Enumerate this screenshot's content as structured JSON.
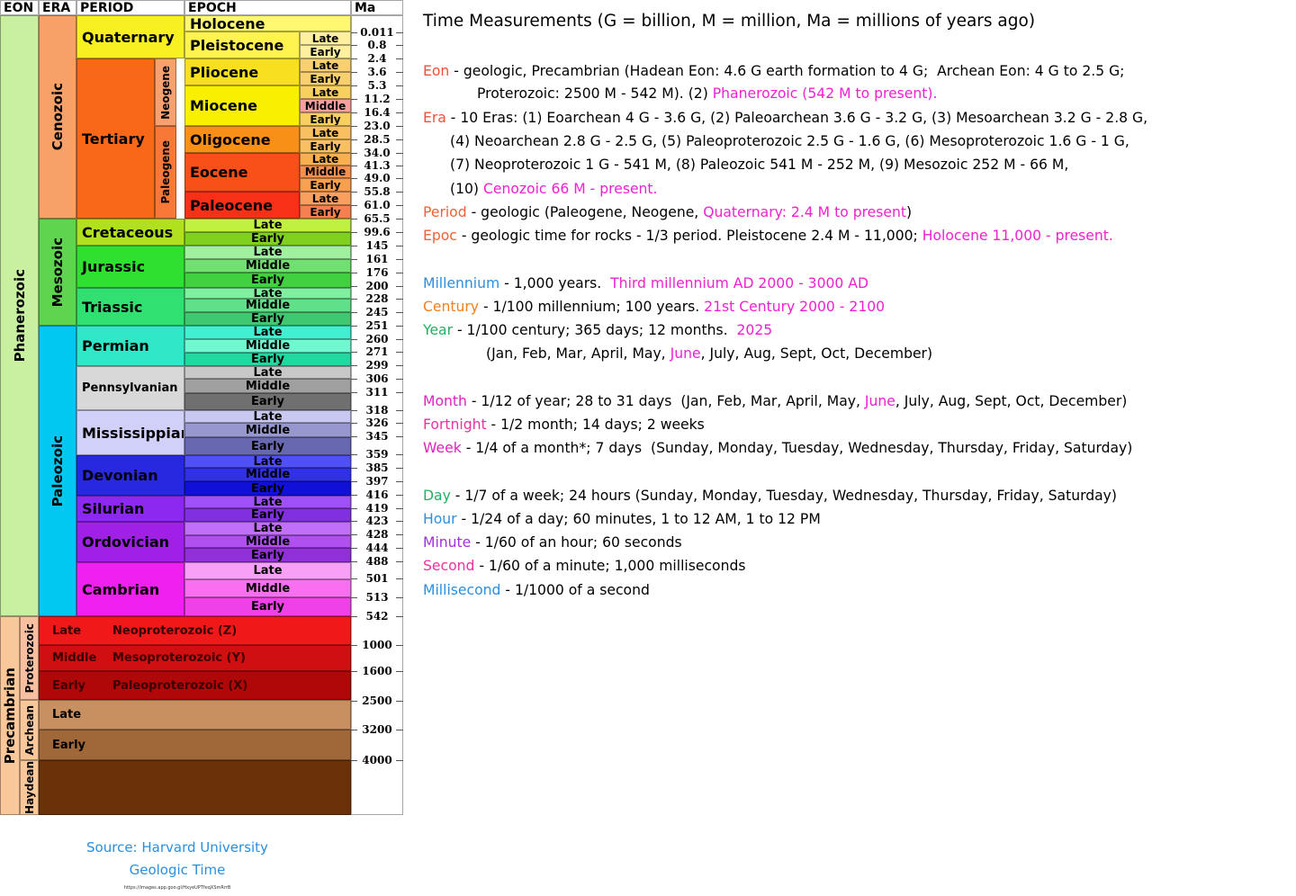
{
  "timescale": {
    "headers": [
      "EON",
      "ERA",
      "PERIOD",
      "EPOCH",
      "Ma"
    ],
    "eons": [
      {
        "label": "Phanerozoic",
        "color": "#c8f0a0"
      },
      {
        "label": "Precambrian",
        "color": "#f8c89a"
      }
    ],
    "eras": [
      {
        "label": "Cenozoic",
        "color": "#f7a068"
      },
      {
        "label": "Mesozoic",
        "color": "#5fd44f"
      },
      {
        "label": "Paleozoic",
        "color": "#00c8f0"
      },
      {
        "label": "Proterozoic",
        "color": "#f8c0a0"
      },
      {
        "label": "Archean",
        "color": "#f8c89a"
      },
      {
        "label": "Haydean",
        "color": "#f8c89a"
      }
    ],
    "subperiods": [
      {
        "label": "Neogene",
        "color": "#f8a070"
      },
      {
        "label": "Paleogene",
        "color": "#f87838"
      }
    ],
    "periods": [
      {
        "label": "Quaternary",
        "color": "#f8f020"
      },
      {
        "label": "Tertiary",
        "color": "#f86818"
      },
      {
        "label": "Cretaceous",
        "color": "#b0e020",
        "stages": [
          {
            "label": "Late",
            "color": "#c0f040"
          },
          {
            "label": "Early",
            "color": "#80d020"
          }
        ]
      },
      {
        "label": "Jurassic",
        "color": "#30e030",
        "stages": [
          {
            "label": "Late",
            "color": "#a0f0a0"
          },
          {
            "label": "Middle",
            "color": "#70e070"
          },
          {
            "label": "Early",
            "color": "#40d040"
          }
        ]
      },
      {
        "label": "Triassic",
        "color": "#30e070",
        "stages": [
          {
            "label": "Late",
            "color": "#80f0a0"
          },
          {
            "label": "Middle",
            "color": "#60e088"
          },
          {
            "label": "Early",
            "color": "#40c870"
          }
        ]
      },
      {
        "label": "Permian",
        "color": "#30e8c8",
        "stages": [
          {
            "label": "Late",
            "color": "#40f0d0"
          },
          {
            "label": "Middle",
            "color": "#70f8d0"
          },
          {
            "label": "Early",
            "color": "#20d8a0"
          }
        ]
      },
      {
        "label": "Pennsylvanian",
        "color": "#d8d8d8",
        "stages": [
          {
            "label": "Late",
            "color": "#c8c8c8"
          },
          {
            "label": "Middle",
            "color": "#a0a0a0"
          },
          {
            "label": "Early",
            "color": "#707070"
          }
        ]
      },
      {
        "label": "Mississippian",
        "color": "#d0d0f8",
        "stages": [
          {
            "label": "Late",
            "color": "#c8c8f0"
          },
          {
            "label": "Middle",
            "color": "#9898d0"
          },
          {
            "label": "Early",
            "color": "#6868b0"
          }
        ]
      },
      {
        "label": "Devonian",
        "color": "#2828e0",
        "stages": [
          {
            "label": "Late",
            "color": "#5050f8"
          },
          {
            "label": "Middle",
            "color": "#3030e8"
          },
          {
            "label": "Early",
            "color": "#1010d8"
          }
        ]
      },
      {
        "label": "Silurian",
        "color": "#8c28f0",
        "stages": [
          {
            "label": "Late",
            "color": "#a050f8"
          },
          {
            "label": "Early",
            "color": "#8030e0"
          }
        ]
      },
      {
        "label": "Ordovician",
        "color": "#a020e8",
        "stages": [
          {
            "label": "Late",
            "color": "#c070f8"
          },
          {
            "label": "Middle",
            "color": "#b050f0"
          },
          {
            "label": "Early",
            "color": "#9030d8"
          }
        ]
      },
      {
        "label": "Cambrian",
        "color": "#f020f0",
        "stages": [
          {
            "label": "Late",
            "color": "#f8a0f8"
          },
          {
            "label": "Middle",
            "color": "#f870f0"
          },
          {
            "label": "Early",
            "color": "#f040e8"
          }
        ]
      }
    ],
    "epochs": [
      {
        "label": "Holocene",
        "color": "#fff870"
      },
      {
        "label": "Pleistocene",
        "color": "#fff44f",
        "stages": [
          {
            "label": "Late",
            "color": "#fff0a0"
          },
          {
            "label": "Early",
            "color": "#fff0a0"
          }
        ]
      },
      {
        "label": "Pliocene",
        "color": "#f8e020",
        "stages": [
          {
            "label": "Late",
            "color": "#f8d070"
          },
          {
            "label": "Early",
            "color": "#f8d070"
          }
        ]
      },
      {
        "label": "Miocene",
        "color": "#f8f000",
        "stages": [
          {
            "label": "Late",
            "color": "#f8d060"
          },
          {
            "label": "Middle",
            "color": "#f8a0a0"
          },
          {
            "label": "Early",
            "color": "#f8d060"
          }
        ]
      },
      {
        "label": "Oligocene",
        "color": "#f89018",
        "stages": [
          {
            "label": "Late",
            "color": "#f8c060"
          },
          {
            "label": "Early",
            "color": "#f8c060"
          }
        ]
      },
      {
        "label": "Eocene",
        "color": "#f85018",
        "stages": [
          {
            "label": "Late",
            "color": "#f8b050"
          },
          {
            "label": "Middle",
            "color": "#f89050"
          },
          {
            "label": "Early",
            "color": "#f8a050"
          }
        ]
      },
      {
        "label": "Paleocene",
        "color": "#f83018",
        "stages": [
          {
            "label": "Late",
            "color": "#f8a060"
          },
          {
            "label": "Early",
            "color": "#f88050"
          }
        ]
      }
    ],
    "precambrian_rows": [
      {
        "stage": "Late",
        "name": "Neoproterozoic (Z)",
        "color": "#f01818"
      },
      {
        "stage": "Middle",
        "name": "Mesoproterozoic (Y)",
        "color": "#d01010"
      },
      {
        "stage": "Early",
        "name": "Paleoproterozoic (X)",
        "color": "#b00808"
      },
      {
        "stage": "Late",
        "color": "#c89060"
      },
      {
        "stage": "Early",
        "color": "#a06838"
      },
      {
        "color": "#6a3208"
      }
    ],
    "ma": [
      "0.011",
      "0.8",
      "2.4",
      "3.6",
      "5.3",
      "11.2",
      "16.4",
      "23.0",
      "28.5",
      "34.0",
      "41.3",
      "49.0",
      "55.8",
      "61.0",
      "65.5",
      "99.6",
      "145",
      "161",
      "176",
      "200",
      "228",
      "245",
      "251",
      "260",
      "271",
      "299",
      "306",
      "311",
      "318",
      "326",
      "345",
      "359",
      "385",
      "397",
      "416",
      "419",
      "423",
      "428",
      "444",
      "488",
      "501",
      "513",
      "542",
      "1000",
      "1600",
      "2500",
      "3200",
      "4000"
    ]
  },
  "source": {
    "line1": "Source: Harvard University",
    "line2": "Geologic Time",
    "url": "https://images.app.goo.gl/HxyeUPTfeqXSmRrrB"
  },
  "measurements": {
    "title": "Time Measurements (G = billion, M = million, Ma = millions of years ago)",
    "lines": [
      [
        {
          "text": "Eon",
          "color": "#f05030"
        },
        {
          "text": " - geologic, Precambrian (Hadean Eon: 4.6 G earth formation to 4 G;  Archean Eon: 4 G to 2.5 G;"
        }
      ],
      [
        {
          "text": "Proterozoic: 2500 M - 542 M). (2) "
        },
        {
          "text": "Phanerozoic (542 M to present).",
          "color": "#f020d0"
        }
      ],
      [
        {
          "text": "Era",
          "color": "#f05030"
        },
        {
          "text": " - 10 Eras: (1) Eoarchean 4 G - 3.6 G, (2) Paleoarchean 3.6 G - 3.2 G, (3) Mesoarchean 3.2 G - 2.8 G,"
        }
      ],
      [
        {
          "text": "(4) Neoarchean 2.8 G - 2.5 G, (5) Paleoproterozoic 2.5 G - 1.6 G, (6) Mesoproterozoic 1.6 G - 1 G,"
        }
      ],
      [
        {
          "text": "(7) Neoproterozoic 1 G - 541 M, (8) Paleozoic 541 M - 252 M, (9) Mesozoic 252 M - 66 M,"
        }
      ],
      [
        {
          "text": "(10) "
        },
        {
          "text": "Cenozoic 66 M - present.",
          "color": "#f020d0"
        }
      ],
      [
        {
          "text": "Period",
          "color": "#f06030"
        },
        {
          "text": " - geologic (Paleogene, Neogene, "
        },
        {
          "text": "Quaternary: 2.4 M to present",
          "color": "#f020d0"
        },
        {
          "text": ")"
        }
      ],
      [
        {
          "text": "Epoc",
          "color": "#f06030"
        },
        {
          "text": " - geologic time for rocks - 1/3 period. Pleistocene 2.4 M - 11,000; "
        },
        {
          "text": "Holocene 11,000 - present.",
          "color": "#f020d0"
        }
      ],
      [
        {
          "text": "Millennium",
          "color": "#2a8fe0"
        },
        {
          "text": " - 1,000 years.  "
        },
        {
          "text": "Third millennium AD 2000 - 3000 AD",
          "color": "#f020d0"
        }
      ],
      [
        {
          "text": "Century",
          "color": "#f08020"
        },
        {
          "text": " - 1/100 millennium; 100 years. "
        },
        {
          "text": "21st Century 2000 - 2100",
          "color": "#f020d0"
        }
      ],
      [
        {
          "text": "Year",
          "color": "#20b060"
        },
        {
          "text": " - 1/100 century; 365 days; 12 months.  "
        },
        {
          "text": "2025",
          "color": "#f020d0"
        }
      ],
      [
        {
          "text": "(Jan, Feb, Mar, April, May, "
        },
        {
          "text": "June",
          "color": "#f020d0"
        },
        {
          "text": ", July, Aug, Sept, Oct, December)"
        }
      ],
      [
        {
          "text": "Month",
          "color": "#e020c0"
        },
        {
          "text": " - 1/12 of year; 28 to 31 days  (Jan, Feb, Mar, April, May, "
        },
        {
          "text": "June",
          "color": "#f020d0"
        },
        {
          "text": ", July, Aug, Sept, Oct, December)"
        }
      ],
      [
        {
          "text": "Fortnight",
          "color": "#f030a0"
        },
        {
          "text": " - 1/2 month; 14 days; 2 weeks"
        }
      ],
      [
        {
          "text": "Week",
          "color": "#e020c0"
        },
        {
          "text": " - 1/4 of a month*; 7 days  (Sunday, Monday, Tuesday, Wednesday, Thursday, Friday, Saturday)"
        }
      ],
      [
        {
          "text": "Day",
          "color": "#20b060"
        },
        {
          "text": " - 1/7 of a week; 24 hours (Sunday, Monday, Tuesday, Wednesday, Thursday, Friday, Saturday)"
        }
      ],
      [
        {
          "text": "Hour",
          "color": "#2a8fe0"
        },
        {
          "text": " - 1/24 of a day; 60 minutes, 1 to 12 AM, 1 to 12 PM"
        }
      ],
      [
        {
          "text": "Minute",
          "color": "#a030e0"
        },
        {
          "text": " - 1/60 of an hour; 60 seconds"
        }
      ],
      [
        {
          "text": "Second",
          "color": "#f030a0"
        },
        {
          "text": " - 1/60 of a minute; 1,000 milliseconds"
        }
      ],
      [
        {
          "text": "Millisecond",
          "color": "#2a8fe0"
        },
        {
          "text": " - 1/1000 of a second"
        }
      ]
    ]
  }
}
